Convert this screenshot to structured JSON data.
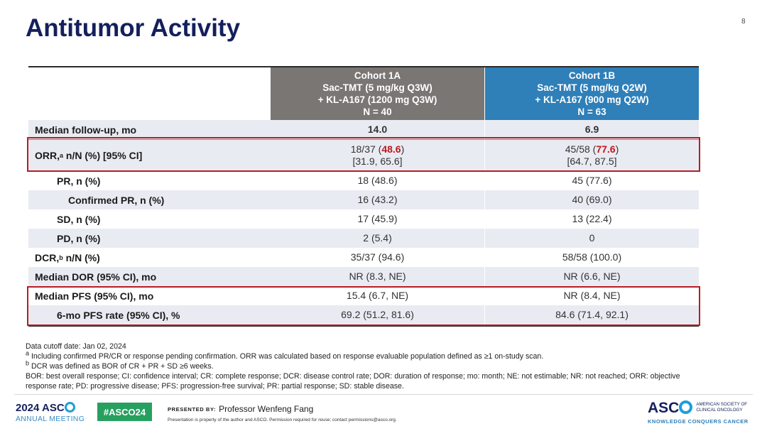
{
  "slide": {
    "title": "Antitumor Activity",
    "page_number": "8"
  },
  "table": {
    "cohort_1a": {
      "name": "Cohort 1A",
      "line1": "Sac-TMT (5 mg/kg Q3W)",
      "line2": "+ KL-A167 (1200 mg Q3W)",
      "n": "N = 40"
    },
    "cohort_1b": {
      "name": "Cohort 1B",
      "line1": "Sac-TMT (5 mg/kg Q2W)",
      "line2": "+ KL-A167 (900 mg Q2W)",
      "n": "N = 63"
    },
    "followup": {
      "label": "Median follow-up, mo",
      "c1": "14.0",
      "c2": "6.9"
    },
    "orr": {
      "label_pre": "ORR,",
      "label_sup": "a",
      "label_post": " n/N (%) [95% CI]",
      "c1_pre": "18/37 (",
      "c1_pct": "48.6",
      "c1_post": ")",
      "c1_ci": "[31.9, 65.6]",
      "c2_pre": "45/58 (",
      "c2_pct": "77.6",
      "c2_post": ")",
      "c2_ci": "[64.7, 87.5]"
    },
    "pr": {
      "label": "PR, n (%)",
      "c1": "18 (48.6)",
      "c2": "45 (77.6)"
    },
    "confirmed_pr": {
      "label": "Confirmed PR, n (%)",
      "c1": "16 (43.2)",
      "c2": "40 (69.0)"
    },
    "sd": {
      "label": "SD, n (%)",
      "c1": "17 (45.9)",
      "c2": "13 (22.4)"
    },
    "pd": {
      "label": "PD, n (%)",
      "c1": "2 (5.4)",
      "c2": "0"
    },
    "dcr": {
      "label_pre": "DCR,",
      "label_sup": "b",
      "label_post": " n/N (%)",
      "c1": "35/37 (94.6)",
      "c2": "58/58 (100.0)"
    },
    "dor": {
      "label": "Median DOR (95% CI), mo",
      "c1": "NR (8.3, NE)",
      "c2": "NR (6.6, NE)"
    },
    "pfs": {
      "label": "Median PFS (95% CI), mo",
      "c1": "15.4 (6.7, NE)",
      "c2": "NR (8.4, NE)"
    },
    "pfs6": {
      "label": "6-mo PFS rate (95% CI), %",
      "c1": "69.2 (51.2, 81.6)",
      "c2": "84.6 (71.4, 92.1)"
    }
  },
  "notes": {
    "cutoff": "Data cutoff date: Jan 02, 2024",
    "note_a_sup": "a",
    "note_a": " Including confirmed PR/CR or response pending confirmation. ORR was calculated based on response evaluable population defined as ≥1 on-study scan.",
    "note_b_sup": "b",
    "note_b": " DCR was defined as BOR of CR + PR + SD ≥6 weeks.",
    "abbreviations": "BOR: best overall response; CI: confidence interval; CR: complete response; DCR: disease control rate; DOR: duration of response; mo: month; NE: not estimable; NR: not reached; ORR: objective response rate; PD: progressive disease; PFS: progression-free survival; PR: partial response; SD: stable disease."
  },
  "footer": {
    "meeting_year": "2024",
    "meeting_brand_pre": "ASC",
    "annual_meeting": "ANNUAL MEETING",
    "hashtag": "#ASCO24",
    "presented_by_label": "PRESENTED BY:",
    "presenter": "Professor Wenfeng Fang",
    "disclaimer": "Presentation is property of the author and ASCO. Permission required for reuse; contact permissions@asco.org.",
    "asco_logo_pre": "ASC",
    "society_line1": "AMERICAN SOCIETY OF",
    "society_line2": "CLINICAL ONCOLOGY",
    "tagline": "KNOWLEDGE CONQUERS CANCER"
  },
  "colors": {
    "title": "#14205c",
    "cohort_1a_header": "#7a7674",
    "cohort_1b_header": "#2f7fb8",
    "highlight_red": "#c0161d",
    "hashtag_green": "#27a05f"
  }
}
